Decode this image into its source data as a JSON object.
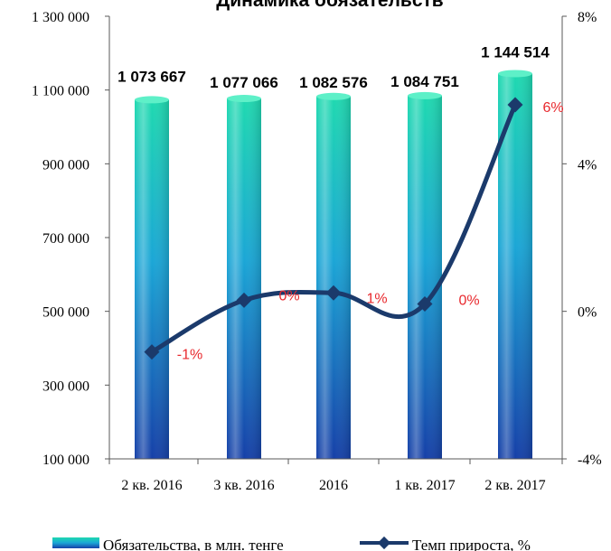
{
  "chart_data": {
    "type": "bar",
    "title": "Динамика обязательств",
    "categories": [
      "2 кв. 2016",
      "3 кв. 2016",
      "2016",
      "1 кв. 2017",
      "2 кв. 2017"
    ],
    "series": [
      {
        "name": "Обязательства, в млн. тенге",
        "type": "bar",
        "axis": "left",
        "values": [
          1073667,
          1077066,
          1082576,
          1084751,
          1144514
        ],
        "labels": [
          "1 073 667",
          "1 077 066",
          "1 082 576",
          "1 084 751",
          "1 144 514"
        ]
      },
      {
        "name": "Темп прироста, %",
        "type": "line",
        "axis": "right",
        "values": [
          -1.1,
          0.3,
          0.5,
          0.2,
          5.6
        ],
        "labels": [
          "-1%",
          "0%",
          "1%",
          "0%",
          "6%"
        ]
      }
    ],
    "y_left": {
      "min": 100000,
      "max": 1300000,
      "ticks": [
        100000,
        300000,
        500000,
        700000,
        900000,
        1100000,
        1300000
      ],
      "tick_labels": [
        "100 000",
        "300 000",
        "500 000",
        "700 000",
        "900 000",
        "1 100 000",
        "1 300 000"
      ]
    },
    "y_right": {
      "min": -4,
      "max": 8,
      "ticks": [
        -4,
        0,
        4,
        8
      ],
      "tick_labels": [
        "-4%",
        "0%",
        "4%",
        "8%"
      ]
    },
    "legend_position": "bottom",
    "grid": false
  },
  "colors": {
    "bar_top": "#1fd9b0",
    "bar_mid": "#1ba6d6",
    "bar_bottom": "#1640a8",
    "line": "#1b3a6b",
    "percent_label": "#e8292e",
    "axis": "#595959"
  }
}
